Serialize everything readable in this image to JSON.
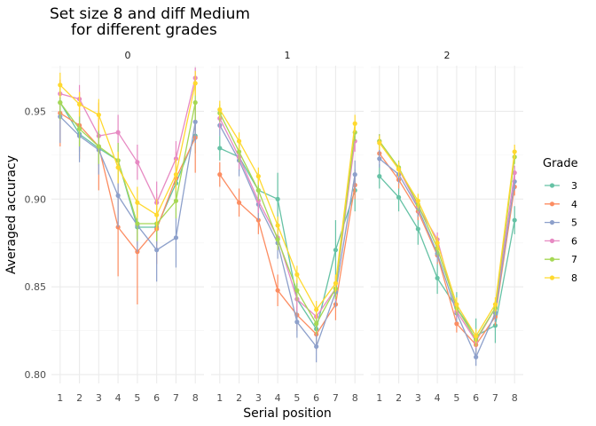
{
  "chart_data": {
    "type": "line",
    "title_lines": [
      "Set size 8 and diff Medium",
      "for different grades"
    ],
    "xlabel": "Serial position",
    "ylabel": "Averaged accuracy",
    "x": [
      1,
      2,
      3,
      4,
      5,
      6,
      7,
      8
    ],
    "ylim": [
      0.795,
      0.976
    ],
    "yticks": [
      0.8,
      0.85,
      0.9,
      0.95
    ],
    "ytick_labels": [
      "0.80",
      "0.85",
      "0.90",
      "0.95"
    ],
    "grid": true,
    "legend": {
      "title": "Grade",
      "position": "right"
    },
    "series_meta": [
      {
        "name": "3",
        "color": "#66c2a5"
      },
      {
        "name": "4",
        "color": "#fc8d62"
      },
      {
        "name": "5",
        "color": "#8da0cb"
      },
      {
        "name": "6",
        "color": "#e78ac3"
      },
      {
        "name": "7",
        "color": "#a6d854"
      },
      {
        "name": "8",
        "color": "#ffd92f"
      }
    ],
    "panels": [
      {
        "label": "0",
        "series": [
          {
            "name": "3",
            "values": [
              0.955,
              0.937,
              0.929,
              0.922,
              0.884,
              0.884,
              0.909,
              0.936
            ],
            "errors": [
              0.01,
              0.01,
              0.01,
              0.01,
              0.01,
              0.01,
              0.01,
              0.01
            ]
          },
          {
            "name": "4",
            "values": [
              0.949,
              0.942,
              0.93,
              0.884,
              0.87,
              0.883,
              0.912,
              0.935
            ],
            "errors": [
              0.019,
              0.019,
              0.025,
              0.028,
              0.03,
              0.02,
              0.015,
              0.02
            ]
          },
          {
            "name": "5",
            "values": [
              0.947,
              0.936,
              0.928,
              0.902,
              0.885,
              0.871,
              0.878,
              0.944
            ],
            "errors": [
              0.015,
              0.015,
              0.014,
              0.018,
              0.015,
              0.018,
              0.017,
              0.012
            ]
          },
          {
            "name": "6",
            "values": [
              0.96,
              0.957,
              0.936,
              0.938,
              0.921,
              0.898,
              0.923,
              0.969
            ],
            "errors": [
              0.008,
              0.008,
              0.01,
              0.01,
              0.01,
              0.012,
              0.01,
              0.006
            ]
          },
          {
            "name": "7",
            "values": [
              0.955,
              0.94,
              0.93,
              0.922,
              0.886,
              0.886,
              0.899,
              0.955
            ],
            "errors": [
              0.01,
              0.01,
              0.01,
              0.01,
              0.01,
              0.01,
              0.01,
              0.01
            ]
          },
          {
            "name": "8",
            "values": [
              0.965,
              0.954,
              0.948,
              0.918,
              0.898,
              0.891,
              0.914,
              0.966
            ],
            "errors": [
              0.007,
              0.007,
              0.009,
              0.009,
              0.009,
              0.009,
              0.009,
              0.007
            ]
          }
        ]
      },
      {
        "label": "1",
        "series": [
          {
            "name": "3",
            "values": [
              0.929,
              0.924,
              0.905,
              0.9,
              0.843,
              0.826,
              0.871,
              0.905
            ],
            "errors": [
              0.007,
              0.008,
              0.01,
              0.015,
              0.01,
              0.01,
              0.017,
              0.012
            ]
          },
          {
            "name": "4",
            "values": [
              0.914,
              0.898,
              0.888,
              0.848,
              0.834,
              0.823,
              0.84,
              0.908
            ],
            "errors": [
              0.007,
              0.008,
              0.008,
              0.009,
              0.009,
              0.009,
              0.009,
              0.008
            ]
          },
          {
            "name": "5",
            "values": [
              0.942,
              0.922,
              0.897,
              0.875,
              0.83,
              0.816,
              0.847,
              0.914
            ],
            "errors": [
              0.006,
              0.009,
              0.009,
              0.009,
              0.009,
              0.009,
              0.009,
              0.008
            ]
          },
          {
            "name": "6",
            "values": [
              0.946,
              0.924,
              0.899,
              0.878,
              0.843,
              0.833,
              0.849,
              0.933
            ],
            "errors": [
              0.006,
              0.007,
              0.007,
              0.007,
              0.007,
              0.007,
              0.007,
              0.006
            ]
          },
          {
            "name": "7",
            "values": [
              0.949,
              0.927,
              0.905,
              0.877,
              0.848,
              0.829,
              0.849,
              0.938
            ],
            "errors": [
              0.005,
              0.006,
              0.006,
              0.006,
              0.006,
              0.006,
              0.006,
              0.005
            ]
          },
          {
            "name": "8",
            "values": [
              0.951,
              0.933,
              0.913,
              0.885,
              0.857,
              0.837,
              0.852,
              0.943
            ],
            "errors": [
              0.005,
              0.005,
              0.005,
              0.005,
              0.005,
              0.005,
              0.005,
              0.005
            ]
          }
        ]
      },
      {
        "label": "2",
        "series": [
          {
            "name": "3",
            "values": [
              0.913,
              0.901,
              0.883,
              0.855,
              0.838,
              0.822,
              0.828,
              0.888
            ],
            "errors": [
              0.007,
              0.008,
              0.009,
              0.009,
              0.009,
              0.01,
              0.01,
              0.008
            ]
          },
          {
            "name": "4",
            "values": [
              0.926,
              0.911,
              0.893,
              0.868,
              0.829,
              0.817,
              0.833,
              0.907
            ],
            "errors": [
              0.005,
              0.005,
              0.005,
              0.005,
              0.005,
              0.005,
              0.005,
              0.005
            ]
          },
          {
            "name": "5",
            "values": [
              0.923,
              0.914,
              0.895,
              0.869,
              0.835,
              0.81,
              0.835,
              0.91
            ],
            "errors": [
              0.005,
              0.005,
              0.005,
              0.005,
              0.005,
              0.005,
              0.005,
              0.005
            ]
          },
          {
            "name": "6",
            "values": [
              0.933,
              0.917,
              0.896,
              0.877,
              0.836,
              0.819,
              0.838,
              0.915
            ],
            "errors": [
              0.004,
              0.004,
              0.004,
              0.004,
              0.004,
              0.004,
              0.004,
              0.004
            ]
          },
          {
            "name": "7",
            "values": [
              0.933,
              0.918,
              0.897,
              0.872,
              0.838,
              0.82,
              0.838,
              0.924
            ],
            "errors": [
              0.004,
              0.004,
              0.004,
              0.004,
              0.004,
              0.004,
              0.004,
              0.004
            ]
          },
          {
            "name": "8",
            "values": [
              0.932,
              0.917,
              0.899,
              0.875,
              0.84,
              0.822,
              0.84,
              0.927
            ],
            "errors": [
              0.004,
              0.004,
              0.004,
              0.004,
              0.004,
              0.004,
              0.004,
              0.004
            ]
          }
        ]
      }
    ]
  }
}
